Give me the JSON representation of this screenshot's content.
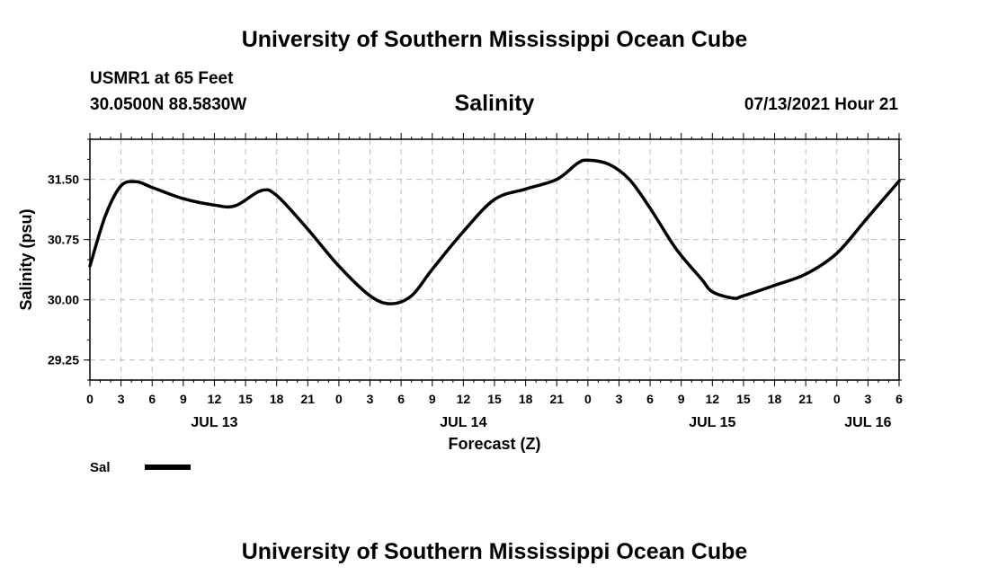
{
  "header": {
    "title": "University of Southern Mississippi Ocean Cube",
    "station": "USMR1 at 65 Feet",
    "coordinates": "30.0500N  88.5830W",
    "datestamp": "07/13/2021 Hour 21"
  },
  "footer": {
    "title": "University of Southern Mississippi Ocean Cube"
  },
  "chart_data": {
    "type": "line",
    "title": "Salinity",
    "xlabel": "Forecast (Z)",
    "ylabel": "Salinity (psu)",
    "ylim": [
      29.0,
      32.0
    ],
    "xlim_hours": [
      0,
      78
    ],
    "grid": true,
    "y_ticks": [
      29.25,
      30.0,
      30.75,
      31.5
    ],
    "y_tick_labels": [
      "29.25",
      "30.00",
      "30.75",
      "31.50"
    ],
    "x_ticks_hours": [
      0,
      3,
      6,
      9,
      12,
      15,
      18,
      21,
      24,
      27,
      30,
      33,
      36,
      39,
      42,
      45,
      48,
      51,
      54,
      57,
      60,
      63,
      66,
      69,
      72,
      75,
      78
    ],
    "x_tick_labels": [
      "0",
      "3",
      "6",
      "9",
      "12",
      "15",
      "18",
      "21",
      "0",
      "3",
      "6",
      "9",
      "12",
      "15",
      "18",
      "21",
      "0",
      "3",
      "6",
      "9",
      "12",
      "15",
      "18",
      "21",
      "0",
      "3",
      "6"
    ],
    "day_labels": [
      {
        "hour": 12,
        "label": "JUL 13"
      },
      {
        "hour": 36,
        "label": "JUL 14"
      },
      {
        "hour": 60,
        "label": "JUL 15"
      },
      {
        "hour": 75,
        "label": "JUL 16"
      }
    ],
    "legend": {
      "position": "bottom-left",
      "entries": [
        {
          "name": "Sal",
          "color": "#000000"
        }
      ]
    },
    "series": [
      {
        "name": "Sal",
        "color": "#000000",
        "x": [
          0,
          1.5,
          3,
          4.5,
          6,
          9,
          12,
          14,
          16.5,
          18,
          21,
          24,
          27,
          29,
          31,
          33,
          36,
          39,
          42,
          45,
          47,
          48,
          50,
          52,
          54,
          56,
          57,
          59,
          60,
          62,
          63,
          66,
          69,
          72,
          75,
          78
        ],
        "y": [
          30.42,
          31.05,
          31.42,
          31.47,
          31.4,
          31.26,
          31.18,
          31.17,
          31.36,
          31.3,
          30.88,
          30.42,
          30.05,
          29.95,
          30.05,
          30.38,
          30.85,
          31.25,
          31.38,
          31.5,
          31.7,
          31.74,
          31.69,
          31.5,
          31.14,
          30.73,
          30.55,
          30.25,
          30.1,
          30.02,
          30.05,
          30.18,
          30.32,
          30.58,
          31.03,
          31.48
        ]
      }
    ]
  }
}
